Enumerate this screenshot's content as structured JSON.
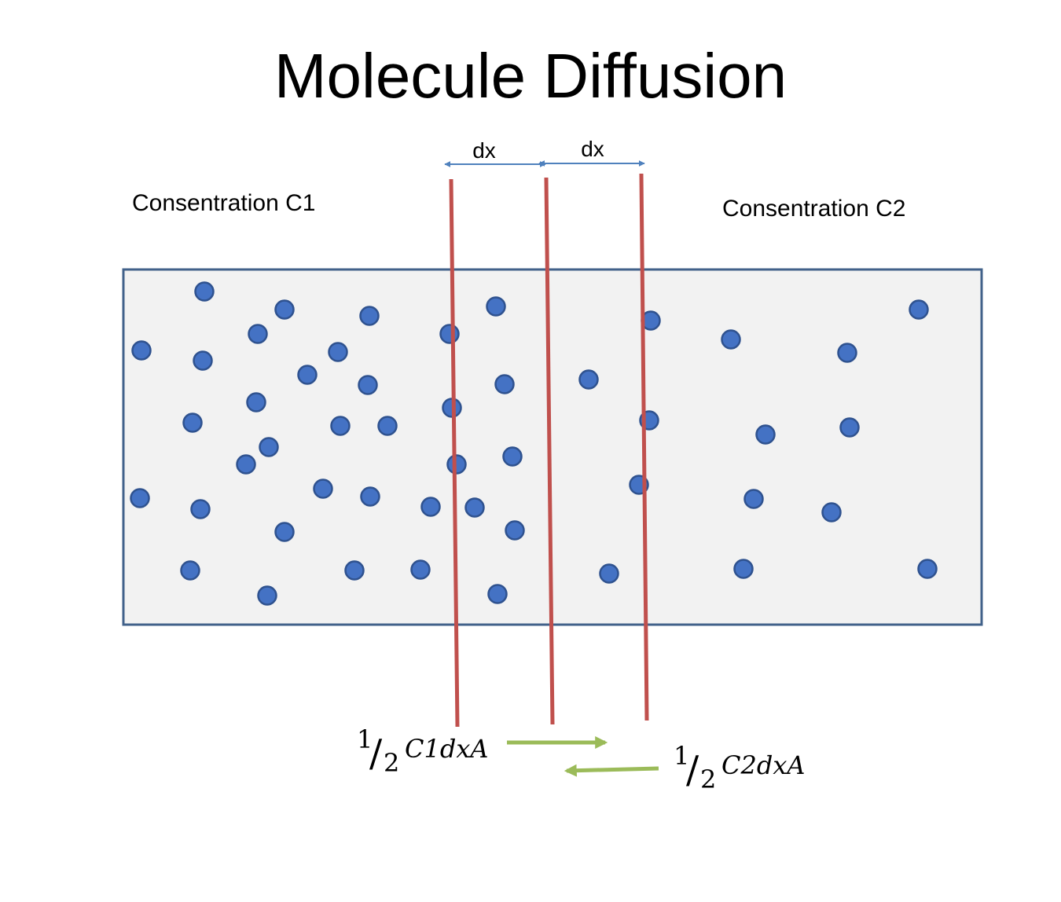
{
  "title": "Molecule Diffusion",
  "labels": {
    "left_concentration": "Consentration C1",
    "right_concentration": "Consentration C2",
    "dx_left": "dx",
    "dx_right": "dx"
  },
  "formulas": {
    "left": {
      "numerator": "1",
      "denominator": "2",
      "expression": "C1dxA"
    },
    "right": {
      "numerator": "1",
      "denominator": "2",
      "expression": "C2dxA"
    }
  },
  "colors": {
    "container_fill": "#f2f2f2",
    "container_stroke": "#41618a",
    "molecule_fill": "#4472c4",
    "molecule_stroke": "#2f528f",
    "boundary_line": "#c0504d",
    "dimension_arrow": "#4f81bd",
    "flux_arrow": "#9bbb59"
  }
}
